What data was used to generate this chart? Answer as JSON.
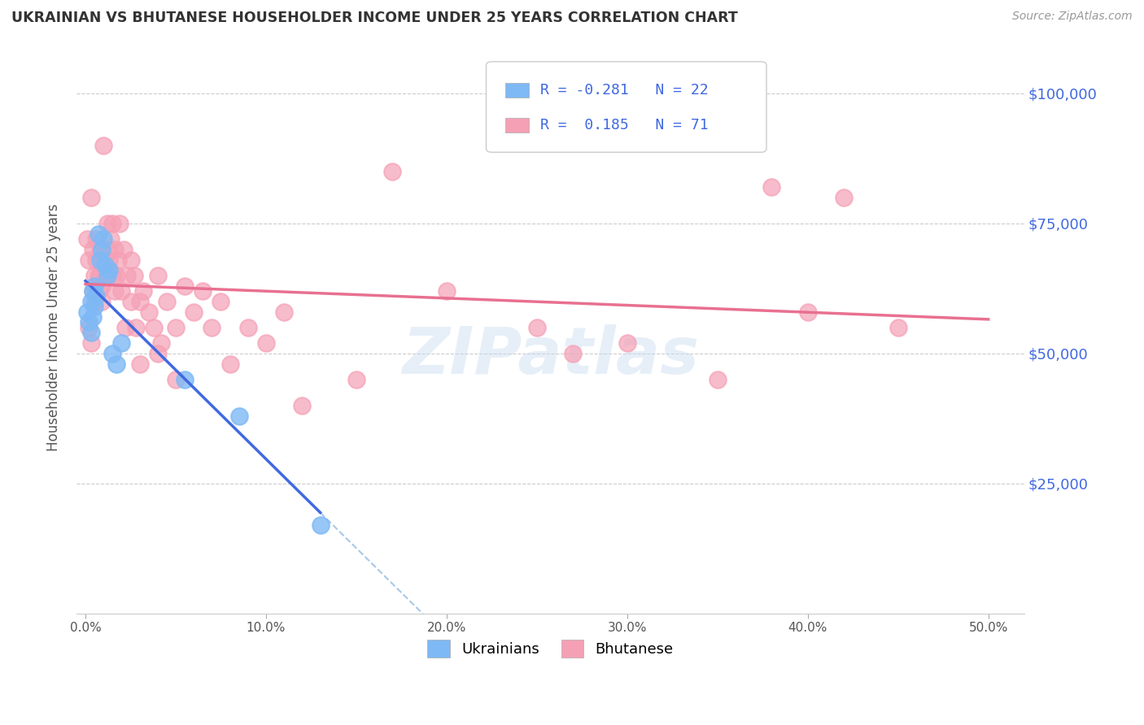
{
  "title": "UKRAINIAN VS BHUTANESE HOUSEHOLDER INCOME UNDER 25 YEARS CORRELATION CHART",
  "source": "Source: ZipAtlas.com",
  "ylabel": "Householder Income Under 25 years",
  "xlabel_ticks": [
    "0.0%",
    "10.0%",
    "20.0%",
    "30.0%",
    "40.0%",
    "50.0%"
  ],
  "xlabel_vals": [
    0.0,
    0.1,
    0.2,
    0.3,
    0.4,
    0.5
  ],
  "ytick_labels": [
    "$25,000",
    "$50,000",
    "$75,000",
    "$100,000"
  ],
  "ytick_vals": [
    25000,
    50000,
    75000,
    100000
  ],
  "ylim": [
    0,
    110000
  ],
  "xlim": [
    -0.005,
    0.52
  ],
  "legend_r_ukraine": "-0.281",
  "legend_n_ukraine": "22",
  "legend_r_bhutan": "0.185",
  "legend_n_bhutan": "71",
  "watermark": "ZIPatlas",
  "ukraine_color": "#7EB9F5",
  "bhutan_color": "#F5A0B5",
  "ukraine_line_color": "#4169E1",
  "bhutan_line_color": "#E87090",
  "dashed_line_color": "#A8C8E8",
  "background_color": "#FFFFFF",
  "ukraine_points": [
    [
      0.001,
      58000
    ],
    [
      0.002,
      56000
    ],
    [
      0.003,
      54000
    ],
    [
      0.003,
      60000
    ],
    [
      0.004,
      62000
    ],
    [
      0.004,
      57000
    ],
    [
      0.005,
      59000
    ],
    [
      0.005,
      63000
    ],
    [
      0.006,
      61000
    ],
    [
      0.007,
      73000
    ],
    [
      0.008,
      68000
    ],
    [
      0.009,
      70000
    ],
    [
      0.01,
      72000
    ],
    [
      0.011,
      67000
    ],
    [
      0.012,
      65000
    ],
    [
      0.013,
      66000
    ],
    [
      0.015,
      50000
    ],
    [
      0.017,
      48000
    ],
    [
      0.02,
      52000
    ],
    [
      0.055,
      45000
    ],
    [
      0.085,
      38000
    ],
    [
      0.13,
      17000
    ]
  ],
  "bhutan_points": [
    [
      0.001,
      72000
    ],
    [
      0.002,
      68000
    ],
    [
      0.002,
      55000
    ],
    [
      0.003,
      80000
    ],
    [
      0.003,
      52000
    ],
    [
      0.004,
      62000
    ],
    [
      0.004,
      70000
    ],
    [
      0.005,
      65000
    ],
    [
      0.005,
      60000
    ],
    [
      0.006,
      68000
    ],
    [
      0.006,
      72000
    ],
    [
      0.007,
      65000
    ],
    [
      0.007,
      62000
    ],
    [
      0.008,
      70000
    ],
    [
      0.008,
      65000
    ],
    [
      0.009,
      60000
    ],
    [
      0.009,
      63000
    ],
    [
      0.01,
      68000
    ],
    [
      0.01,
      90000
    ],
    [
      0.011,
      65000
    ],
    [
      0.012,
      70000
    ],
    [
      0.012,
      75000
    ],
    [
      0.013,
      68000
    ],
    [
      0.014,
      72000
    ],
    [
      0.015,
      65000
    ],
    [
      0.015,
      75000
    ],
    [
      0.016,
      62000
    ],
    [
      0.016,
      70000
    ],
    [
      0.017,
      65000
    ],
    [
      0.018,
      68000
    ],
    [
      0.019,
      75000
    ],
    [
      0.02,
      62000
    ],
    [
      0.021,
      70000
    ],
    [
      0.022,
      55000
    ],
    [
      0.023,
      65000
    ],
    [
      0.025,
      68000
    ],
    [
      0.025,
      60000
    ],
    [
      0.027,
      65000
    ],
    [
      0.028,
      55000
    ],
    [
      0.03,
      60000
    ],
    [
      0.03,
      48000
    ],
    [
      0.032,
      62000
    ],
    [
      0.035,
      58000
    ],
    [
      0.038,
      55000
    ],
    [
      0.04,
      50000
    ],
    [
      0.04,
      65000
    ],
    [
      0.042,
      52000
    ],
    [
      0.045,
      60000
    ],
    [
      0.05,
      55000
    ],
    [
      0.05,
      45000
    ],
    [
      0.055,
      63000
    ],
    [
      0.06,
      58000
    ],
    [
      0.065,
      62000
    ],
    [
      0.07,
      55000
    ],
    [
      0.075,
      60000
    ],
    [
      0.08,
      48000
    ],
    [
      0.09,
      55000
    ],
    [
      0.1,
      52000
    ],
    [
      0.11,
      58000
    ],
    [
      0.12,
      40000
    ],
    [
      0.15,
      45000
    ],
    [
      0.17,
      85000
    ],
    [
      0.2,
      62000
    ],
    [
      0.25,
      55000
    ],
    [
      0.27,
      50000
    ],
    [
      0.3,
      52000
    ],
    [
      0.35,
      45000
    ],
    [
      0.38,
      82000
    ],
    [
      0.4,
      58000
    ],
    [
      0.42,
      80000
    ],
    [
      0.45,
      55000
    ]
  ]
}
